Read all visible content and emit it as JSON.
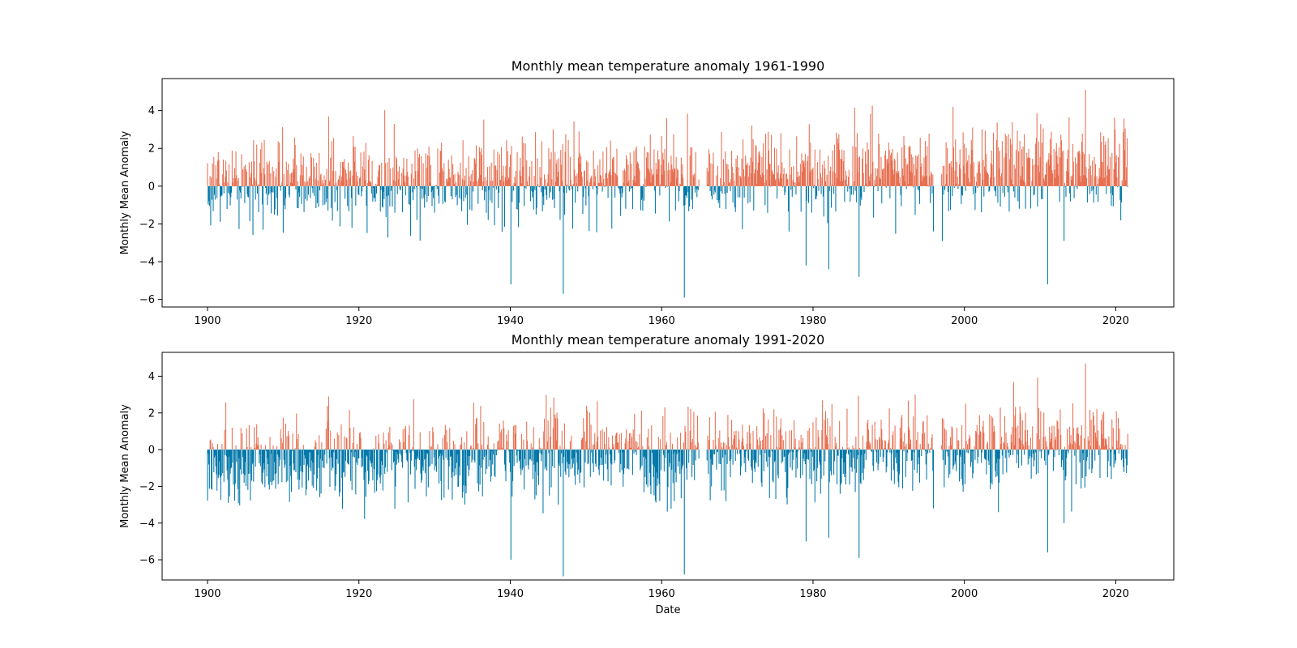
{
  "chart_data": [
    {
      "type": "bar",
      "title": "Monthly mean temperature anomaly 1961-1990",
      "xlabel": "",
      "ylabel": "Monthly Mean Anomaly",
      "xlim": [
        "1894-01-01",
        "2027-09-01"
      ],
      "ylim": [
        -6.4,
        5.7
      ],
      "x_ticks": [
        1900,
        1920,
        1940,
        1960,
        1980,
        2000,
        2020
      ],
      "y_ticks": [
        -6,
        -4,
        -2,
        0,
        2,
        4
      ],
      "grid": false,
      "legend": "none",
      "colors": {
        "positive": "#e76f51",
        "negative": "#0077a8"
      },
      "x_range": [
        "1900-01",
        "2021-08"
      ],
      "gaps": [
        [
          "1965-01",
          "1965-12"
        ],
        [
          "1996-01",
          "1996-12"
        ]
      ],
      "monthly_baseline": 0.15,
      "spread": 1.15,
      "series": [
        {
          "x": [
            "1916-01",
            "1940-02",
            "1947-01",
            "1963-01",
            "1979-02",
            "1982-02",
            "1986-02",
            "1995-12",
            "2011-01",
            "2013-03",
            "2016-01"
          ],
          "values": [
            3.7,
            -5.2,
            -5.7,
            -5.9,
            -4.2,
            -4.4,
            -4.8,
            -2.4,
            -5.2,
            -2.9,
            5.1
          ]
        }
      ]
    },
    {
      "type": "bar",
      "title": "Monthly mean temperature anomaly 1991-2020",
      "xlabel": "Date",
      "ylabel": "Monthly Mean Anomaly",
      "xlim": [
        "1894-01-01",
        "2027-09-01"
      ],
      "ylim": [
        -7.1,
        5.3
      ],
      "x_ticks": [
        1900,
        1920,
        1940,
        1960,
        1980,
        2000,
        2020
      ],
      "y_ticks": [
        -6,
        -4,
        -2,
        0,
        2,
        4
      ],
      "grid": false,
      "legend": "none",
      "colors": {
        "positive": "#e76f51",
        "negative": "#0077a8"
      },
      "x_range": [
        "1900-01",
        "2021-08"
      ],
      "gaps": [
        [
          "1965-01",
          "1965-12"
        ],
        [
          "1996-01",
          "1996-12"
        ]
      ],
      "monthly_baseline": -0.7,
      "spread": 1.15,
      "series": [
        {
          "x": [
            "1916-01",
            "1940-02",
            "1947-01",
            "1963-01",
            "1979-02",
            "1982-02",
            "1986-02",
            "1995-12",
            "2011-01",
            "2013-03",
            "2016-01"
          ],
          "values": [
            2.9,
            -6.0,
            -6.9,
            -6.8,
            -5.0,
            -4.8,
            -5.9,
            -3.2,
            -5.6,
            -4.0,
            4.7
          ]
        }
      ]
    }
  ]
}
